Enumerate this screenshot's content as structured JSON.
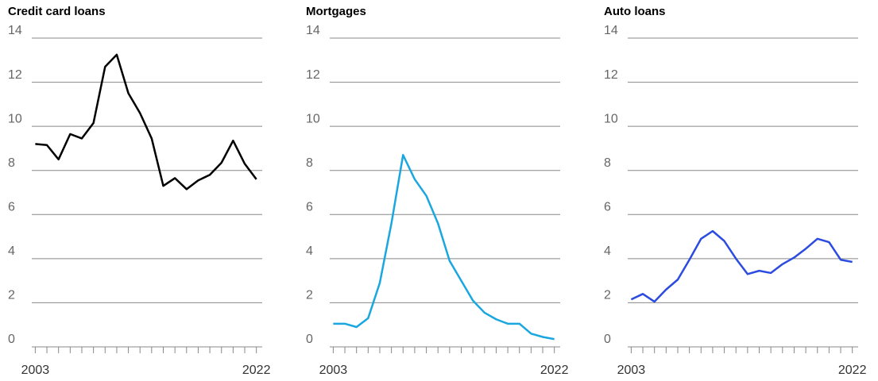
{
  "chart_data": [
    {
      "type": "line",
      "title": "Credit card loans",
      "x": [
        2003,
        2004,
        2005,
        2006,
        2007,
        2008,
        2009,
        2010,
        2011,
        2012,
        2013,
        2014,
        2015,
        2016,
        2017,
        2018,
        2019,
        2020,
        2021,
        2022
      ],
      "values": [
        9.2,
        9.15,
        8.5,
        9.65,
        9.45,
        10.15,
        12.7,
        13.25,
        11.5,
        10.6,
        9.45,
        7.3,
        7.65,
        7.15,
        7.55,
        7.8,
        8.35,
        9.35,
        8.3,
        7.6
      ],
      "color": "#000000",
      "xlim": [
        2002.7,
        2022.5
      ],
      "xticks": [
        2003,
        2022
      ],
      "ylim": [
        0,
        14
      ],
      "yticks": [
        0,
        2,
        4,
        6,
        8,
        10,
        12,
        14
      ],
      "grid": true
    },
    {
      "type": "line",
      "title": "Mortgages",
      "x": [
        2003,
        2004,
        2005,
        2006,
        2007,
        2008,
        2009,
        2010,
        2011,
        2012,
        2013,
        2014,
        2015,
        2016,
        2017,
        2018,
        2019,
        2020,
        2021,
        2022
      ],
      "values": [
        1.05,
        1.05,
        0.9,
        1.3,
        2.9,
        5.6,
        8.7,
        7.6,
        6.85,
        5.6,
        3.9,
        3.0,
        2.1,
        1.55,
        1.25,
        1.05,
        1.05,
        0.6,
        0.45,
        0.35
      ],
      "color": "#1aa7e0",
      "xlim": [
        2002.7,
        2022.5
      ],
      "xticks": [
        2003,
        2022
      ],
      "ylim": [
        0,
        14
      ],
      "yticks": [
        0,
        2,
        4,
        6,
        8,
        10,
        12,
        14
      ],
      "grid": true
    },
    {
      "type": "line",
      "title": "Auto loans",
      "x": [
        2003,
        2004,
        2005,
        2006,
        2007,
        2008,
        2009,
        2010,
        2011,
        2012,
        2013,
        2014,
        2015,
        2016,
        2017,
        2018,
        2019,
        2020,
        2021,
        2022
      ],
      "values": [
        2.15,
        2.4,
        2.05,
        2.6,
        3.05,
        3.95,
        4.9,
        5.25,
        4.8,
        4.0,
        3.3,
        3.45,
        3.35,
        3.75,
        4.05,
        4.45,
        4.9,
        4.75,
        3.95,
        3.85
      ],
      "color": "#2c4be0",
      "xlim": [
        2002.7,
        2022.5
      ],
      "xticks": [
        2003,
        2022
      ],
      "ylim": [
        0,
        14
      ],
      "yticks": [
        0,
        2,
        4,
        6,
        8,
        10,
        12,
        14
      ],
      "grid": true
    }
  ]
}
